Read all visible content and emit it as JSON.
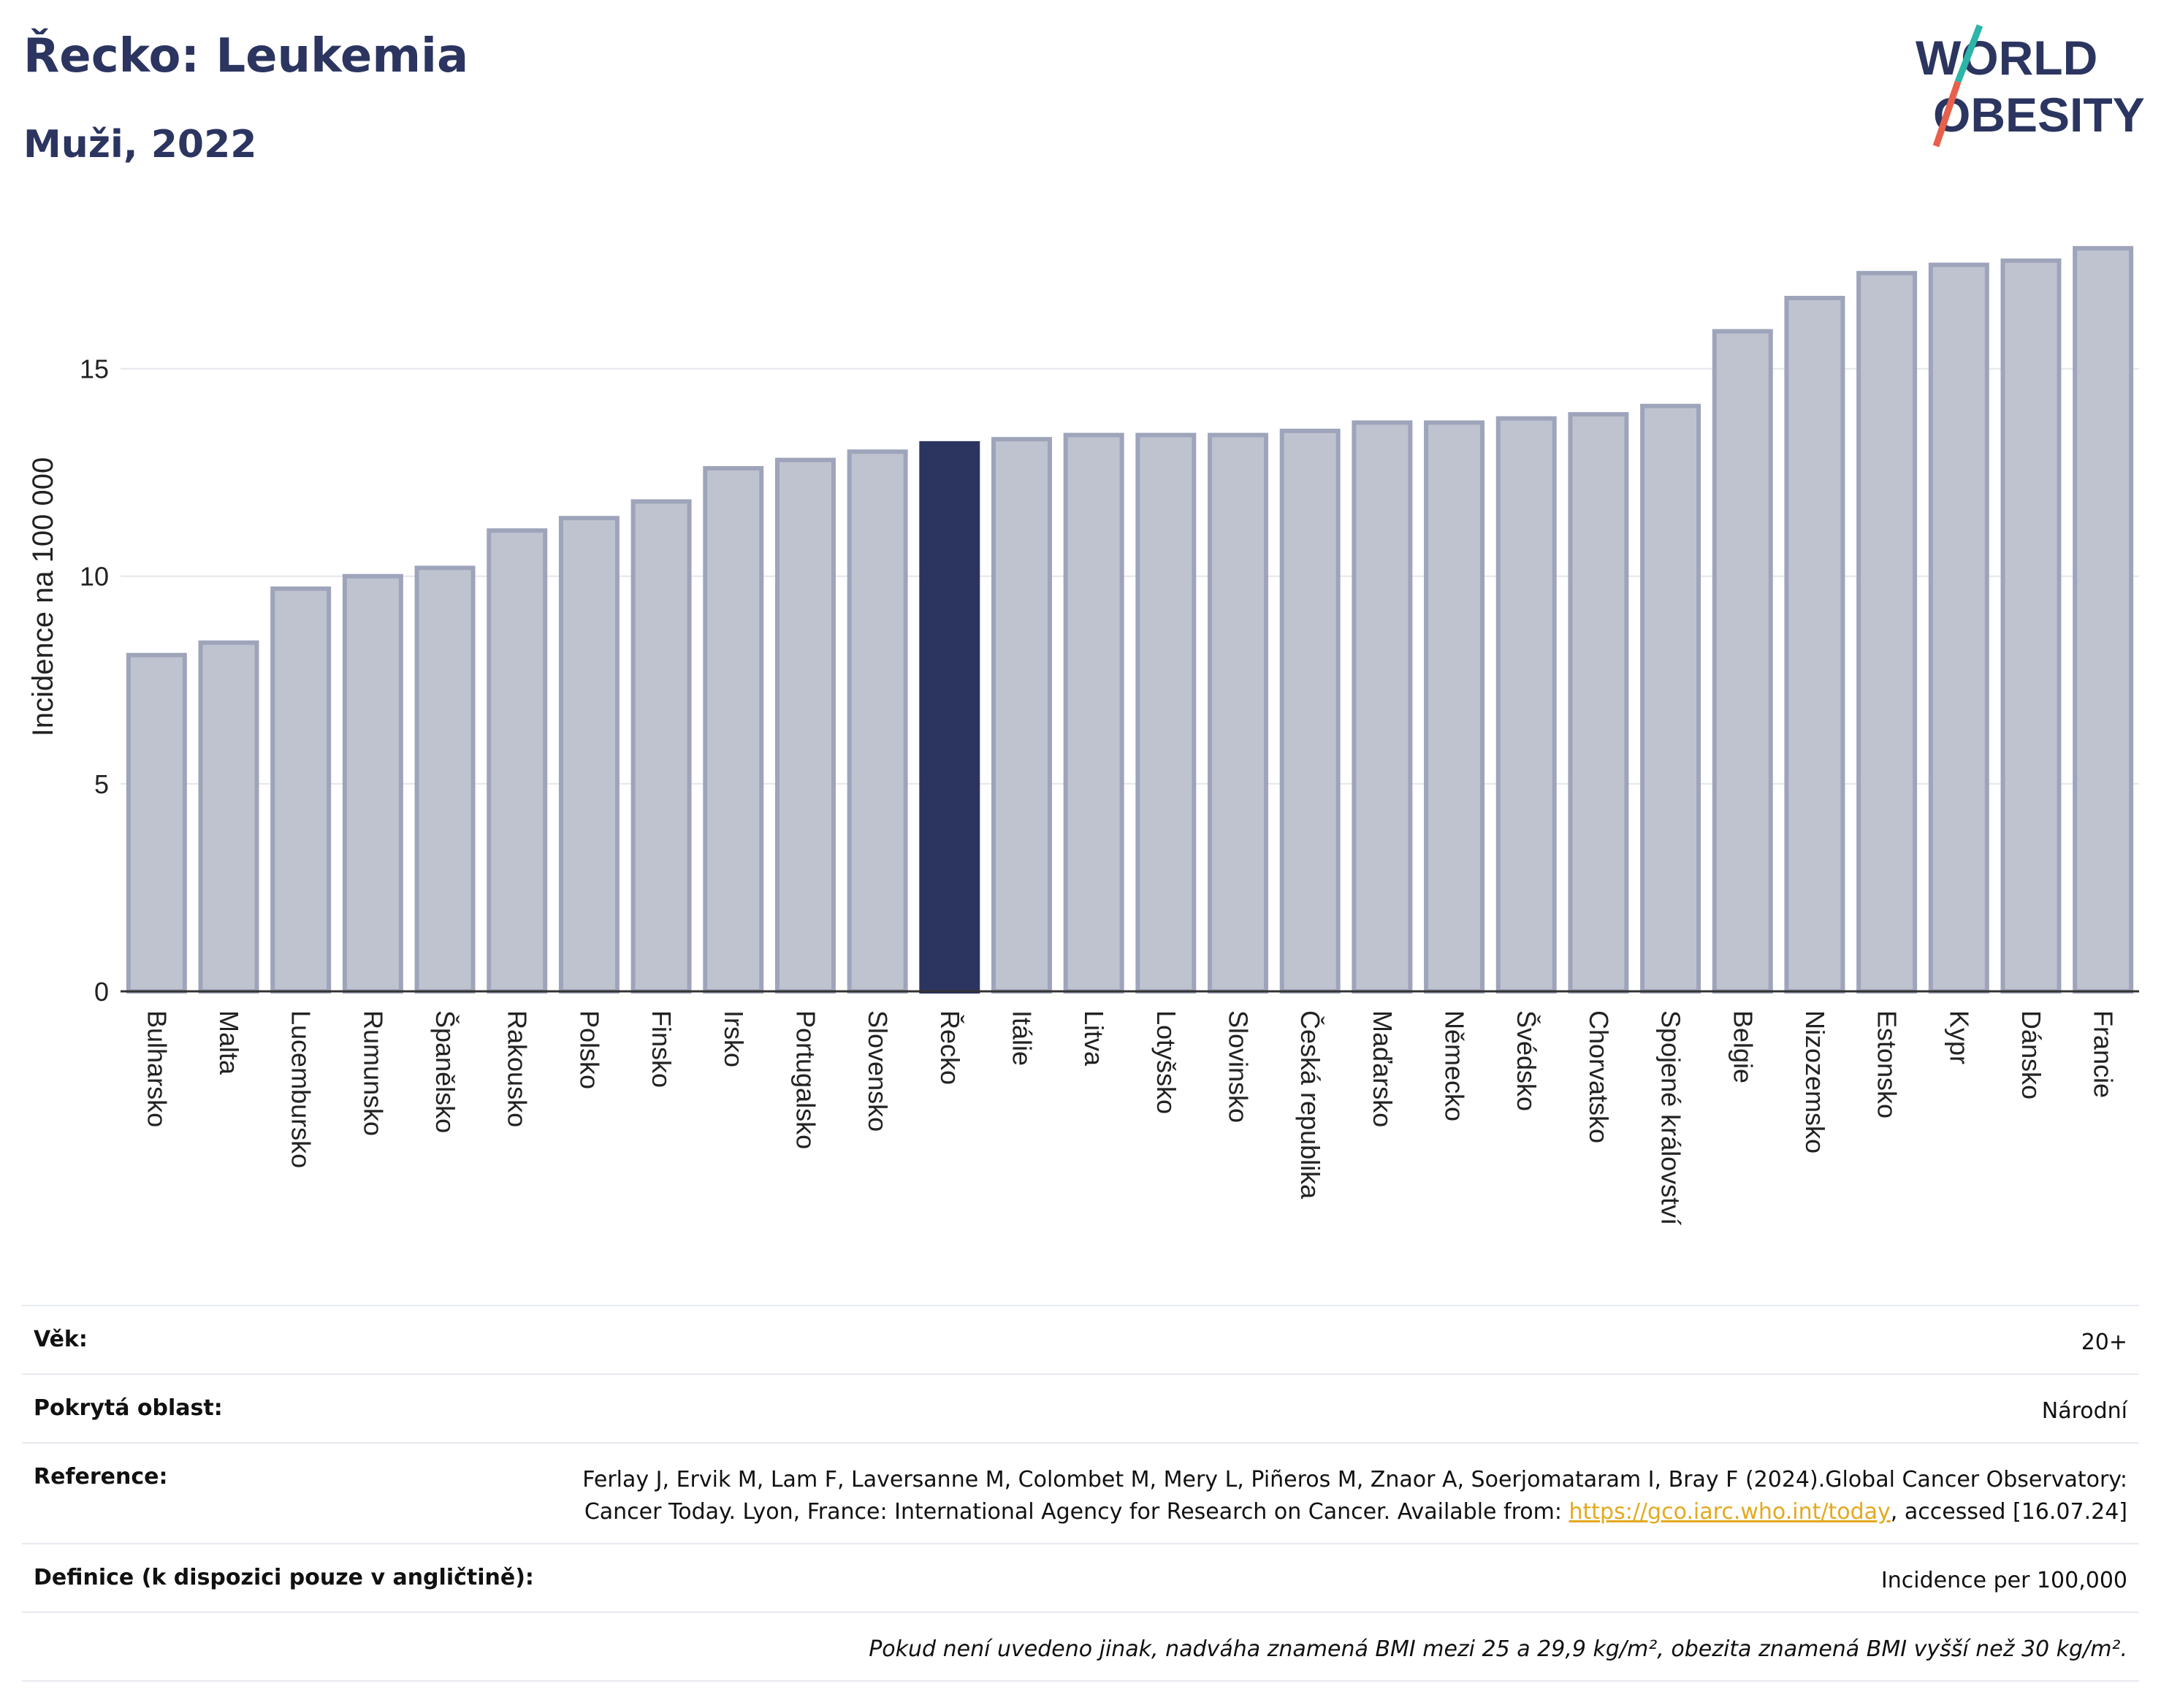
{
  "header": {
    "title": "Řecko: Leukemia",
    "subtitle": "Muži, 2022"
  },
  "logo": {
    "line1": "WORLD",
    "line2": "OBESITY",
    "accent_colors": [
      "#2cb5a8",
      "#e8604c"
    ]
  },
  "chart_data": {
    "type": "bar",
    "title": "Řecko: Leukemia",
    "subtitle": "Muži, 2022",
    "ylabel": "Incidence na 100 000",
    "xlabel": "",
    "ylim": [
      0,
      18.6
    ],
    "yticks": [
      0,
      5,
      10,
      15
    ],
    "grid": true,
    "highlight": "Řecko",
    "colors": {
      "bar": "#bfc3d0",
      "bar_outline": "#9ea4ba",
      "highlight": "#2b3560",
      "grid": "#e3e6ec",
      "axis": "#333333"
    },
    "categories": [
      "Bulharsko",
      "Malta",
      "Lucembursko",
      "Rumunsko",
      "Španělsko",
      "Rakousko",
      "Polsko",
      "Finsko",
      "Irsko",
      "Portugalsko",
      "Slovensko",
      "Řecko",
      "Itálie",
      "Litva",
      "Lotyšsko",
      "Slovinsko",
      "Česká republika",
      "Maďarsko",
      "Německo",
      "Švédsko",
      "Chorvatsko",
      "Spojené království",
      "Belgie",
      "Nizozemsko",
      "Estonsko",
      "Kypr",
      "Dánsko",
      "Francie"
    ],
    "values": [
      8.1,
      8.4,
      9.7,
      10.0,
      10.2,
      11.1,
      11.4,
      11.8,
      12.6,
      12.8,
      13.0,
      13.2,
      13.3,
      13.4,
      13.4,
      13.4,
      13.5,
      13.7,
      13.7,
      13.8,
      13.9,
      14.1,
      15.9,
      16.7,
      17.3,
      17.5,
      17.6,
      17.9
    ]
  },
  "meta": {
    "age_label": "Věk:",
    "age_value": "20+",
    "area_label": "Pokrytá oblast:",
    "area_value": "Národní",
    "ref_label": "Reference:",
    "ref_text1": "Ferlay J, Ervik M, Lam F, Laversanne M, Colombet M, Mery L, Piñeros M, Znaor A, Soerjomataram I, Bray F (2024).Global Cancer Observatory: Cancer Today. Lyon, France: International Agency for Research on Cancer. Available from: ",
    "ref_link": "https://gco.iarc.who.int/today",
    "ref_text2": ", accessed [16.07.24]",
    "def_label": "Definice (k dispozici pouze v angličtině):",
    "def_value": "Incidence per 100,000",
    "note": "Pokud není uvedeno jinak, nadváha znamená BMI mezi 25 a 29,9 kg/m², obezita znamená BMI vyšší než 30 kg/m²."
  }
}
